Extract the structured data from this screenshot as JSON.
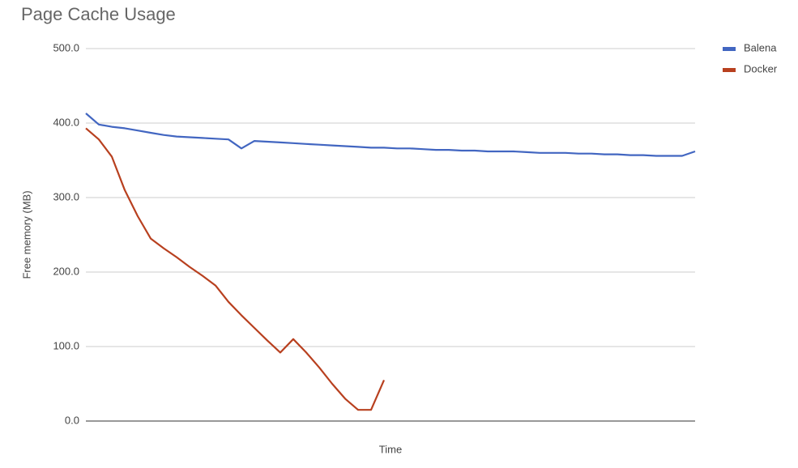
{
  "chart_data": {
    "type": "line",
    "title": "Page Cache Usage",
    "x_label": "Time",
    "y_label": "Free memory (MB)",
    "ylim": [
      0,
      500
    ],
    "yticks": [
      {
        "value": 0,
        "label": "0.0"
      },
      {
        "value": 100,
        "label": "100.0"
      },
      {
        "value": 200,
        "label": "200.0"
      },
      {
        "value": 300,
        "label": "300.0"
      },
      {
        "value": 400,
        "label": "400.0"
      },
      {
        "value": 500,
        "label": "500.0"
      }
    ],
    "grid": true,
    "legend": "right",
    "series": [
      {
        "name": "Balena",
        "color": "#4266c1",
        "values": [
          413,
          398,
          395,
          393,
          390,
          387,
          384,
          382,
          381,
          380,
          379,
          378,
          366,
          376,
          375,
          374,
          373,
          372,
          371,
          370,
          369,
          368,
          367,
          367,
          366,
          366,
          365,
          364,
          364,
          363,
          363,
          362,
          362,
          362,
          361,
          360,
          360,
          360,
          359,
          359,
          358,
          358,
          357,
          357,
          356,
          356,
          356,
          362
        ]
      },
      {
        "name": "Docker",
        "color": "#b8401f",
        "values": [
          393,
          378,
          355,
          310,
          275,
          245,
          232,
          220,
          207,
          195,
          182,
          160,
          142,
          125,
          108,
          92,
          110,
          92,
          72,
          50,
          30,
          15,
          15,
          55,
          null,
          null,
          null,
          null,
          null,
          null,
          null,
          null,
          null,
          null,
          null,
          null,
          null,
          null,
          null,
          null,
          null,
          null,
          null,
          null,
          null,
          null,
          null,
          null
        ]
      }
    ]
  }
}
